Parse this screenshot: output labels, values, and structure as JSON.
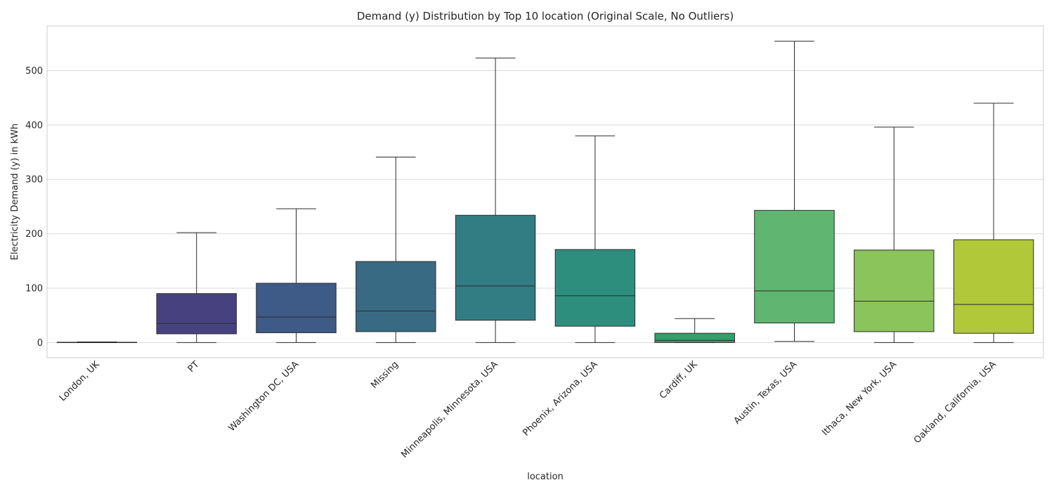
{
  "chart_data": {
    "type": "box",
    "title": "Demand (y) Distribution by Top 10 location (Original Scale, No Outliers)",
    "xlabel": "location",
    "ylabel": "Electricity Demand (y) in kWh",
    "ylim": [
      -28,
      582
    ],
    "yticks": [
      0,
      100,
      200,
      300,
      400,
      500
    ],
    "grid": true,
    "categories": [
      "London, UK",
      "PT",
      "Washington DC, USA",
      "Missing",
      "Minneapolis, Minnesota, USA",
      "Phoenix, Arizona, USA",
      "Cardiff, UK",
      "Austin, Texas, USA",
      "Ithaca, New York, USA",
      "Oakland, California, USA"
    ],
    "boxes": [
      {
        "whisker_low": 0,
        "q1": 0,
        "median": 0,
        "q3": 0.5,
        "whisker_high": 1,
        "color": "#481f70"
      },
      {
        "whisker_low": 0,
        "q1": 16,
        "median": 35,
        "q3": 90,
        "whisker_high": 202,
        "color": "#47427f"
      },
      {
        "whisker_low": 0,
        "q1": 18,
        "median": 47,
        "q3": 109,
        "whisker_high": 246,
        "color": "#3e5a86"
      },
      {
        "whisker_low": 0,
        "q1": 20,
        "median": 58,
        "q3": 149,
        "whisker_high": 341,
        "color": "#396a84"
      },
      {
        "whisker_low": 0,
        "q1": 41,
        "median": 104,
        "q3": 234,
        "whisker_high": 523,
        "color": "#317d83"
      },
      {
        "whisker_low": 0,
        "q1": 30,
        "median": 86,
        "q3": 171,
        "whisker_high": 380,
        "color": "#2d8e7e"
      },
      {
        "whisker_low": 0,
        "q1": 0,
        "median": 4,
        "q3": 17,
        "whisker_high": 44,
        "color": "#33a06c"
      },
      {
        "whisker_low": 2,
        "q1": 36,
        "median": 95,
        "q3": 243,
        "whisker_high": 554,
        "color": "#60b670"
      },
      {
        "whisker_low": 0,
        "q1": 20,
        "median": 76,
        "q3": 170,
        "whisker_high": 396,
        "color": "#8ac45b"
      },
      {
        "whisker_low": 0,
        "q1": 17,
        "median": 70,
        "q3": 189,
        "whisker_high": 440,
        "color": "#b1c838"
      }
    ]
  }
}
